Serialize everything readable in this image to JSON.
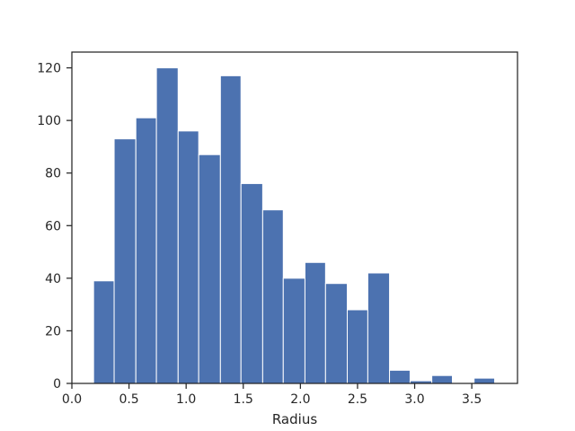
{
  "chart_data": {
    "type": "bar",
    "subtype": "histogram",
    "title": "",
    "xlabel": "Radius",
    "ylabel": "",
    "xlim": [
      0.0,
      3.9
    ],
    "ylim": [
      0,
      126
    ],
    "grid": false,
    "bar_color": "#4c72b0",
    "edge_color": "#ffffff",
    "x_ticks": [
      0.0,
      0.5,
      1.0,
      1.5,
      2.0,
      2.5,
      3.0,
      3.5
    ],
    "x_tick_labels": [
      "0.0",
      "0.5",
      "1.0",
      "1.5",
      "2.0",
      "2.5",
      "3.0",
      "3.5"
    ],
    "y_ticks": [
      0,
      20,
      40,
      60,
      80,
      100,
      120
    ],
    "y_tick_labels": [
      "0",
      "20",
      "40",
      "60",
      "80",
      "100",
      "120"
    ],
    "bins": [
      {
        "x0": 0.19,
        "x1": 0.37,
        "count": 39
      },
      {
        "x0": 0.37,
        "x1": 0.56,
        "count": 93
      },
      {
        "x0": 0.56,
        "x1": 0.74,
        "count": 101
      },
      {
        "x0": 0.74,
        "x1": 0.93,
        "count": 120
      },
      {
        "x0": 0.93,
        "x1": 1.11,
        "count": 96
      },
      {
        "x0": 1.11,
        "x1": 1.3,
        "count": 87
      },
      {
        "x0": 1.3,
        "x1": 1.48,
        "count": 117
      },
      {
        "x0": 1.48,
        "x1": 1.67,
        "count": 76
      },
      {
        "x0": 1.67,
        "x1": 1.85,
        "count": 66
      },
      {
        "x0": 1.85,
        "x1": 2.04,
        "count": 40
      },
      {
        "x0": 2.04,
        "x1": 2.22,
        "count": 46
      },
      {
        "x0": 2.22,
        "x1": 2.41,
        "count": 38
      },
      {
        "x0": 2.41,
        "x1": 2.59,
        "count": 28
      },
      {
        "x0": 2.59,
        "x1": 2.78,
        "count": 42
      },
      {
        "x0": 2.78,
        "x1": 2.96,
        "count": 5
      },
      {
        "x0": 2.96,
        "x1": 3.15,
        "count": 1
      },
      {
        "x0": 3.15,
        "x1": 3.33,
        "count": 3
      },
      {
        "x0": 3.33,
        "x1": 3.52,
        "count": 0
      },
      {
        "x0": 3.52,
        "x1": 3.7,
        "count": 2
      }
    ]
  }
}
